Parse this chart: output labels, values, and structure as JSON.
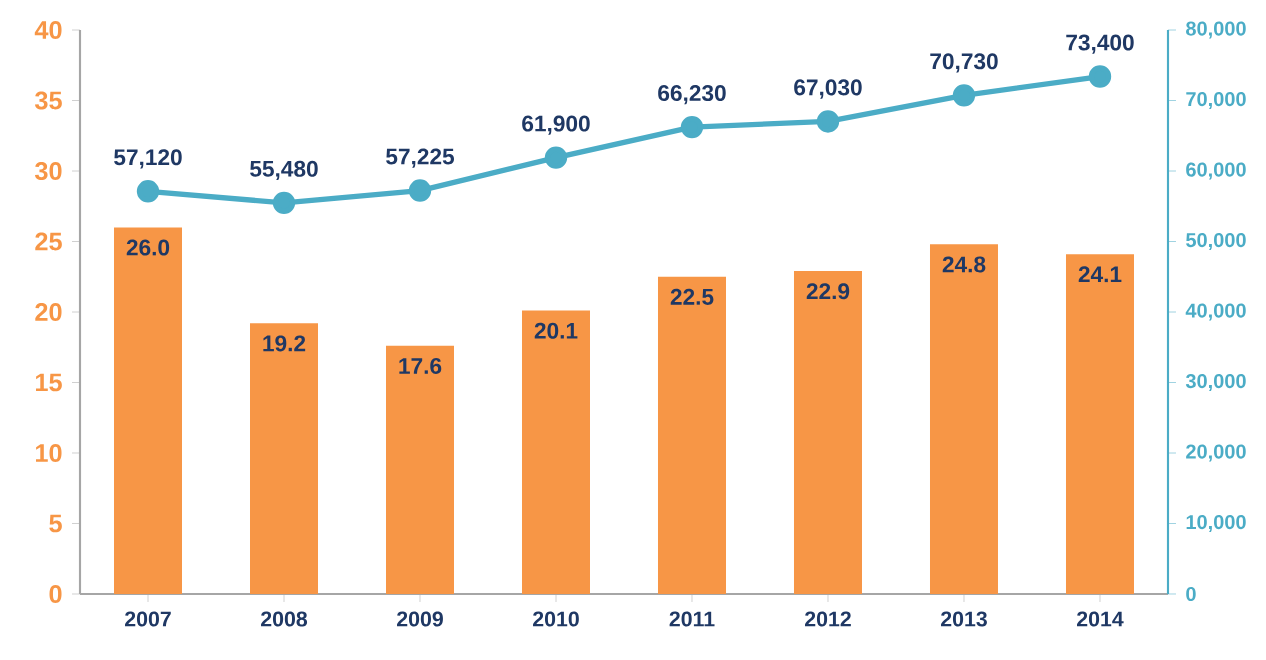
{
  "chart_data": {
    "type": "bar",
    "categories": [
      "2007",
      "2008",
      "2009",
      "2010",
      "2011",
      "2012",
      "2013",
      "2014"
    ],
    "series": [
      {
        "color": "#f79646",
        "values": [
          26.0,
          19.2,
          17.6,
          20.1,
          22.5,
          22.9,
          24.8,
          24.1
        ],
        "value_labels": [
          "26.0",
          "19.2",
          "17.6",
          "20.1",
          "22.5",
          "22.9",
          "24.8",
          "24.1"
        ]
      },
      {
        "type": "line",
        "axis": "y2",
        "color": "#4bacc6",
        "values": [
          57120,
          55480,
          57225,
          61900,
          66230,
          67030,
          70730,
          73400
        ],
        "value_labels": [
          "57,120",
          "55,480",
          "57,225",
          "61,900",
          "66,230",
          "67,030",
          "70,730",
          "73,400"
        ]
      }
    ],
    "ylim": [
      0,
      40
    ],
    "yticks": [
      0,
      5,
      10,
      15,
      20,
      25,
      30,
      35,
      40
    ],
    "y2lim": [
      0,
      80000
    ],
    "y2ticks": [
      0,
      {
        "value": 10000,
        "label": "10,000"
      },
      {
        "value": 20000,
        "label": "20,000"
      },
      {
        "value": 30000,
        "label": "30,000"
      },
      {
        "value": 40000,
        "label": "40,000"
      },
      {
        "value": 50000,
        "label": "50,000"
      },
      {
        "value": 60000,
        "label": "60,000"
      },
      {
        "value": 70000,
        "label": "70,000"
      },
      {
        "value": 80000,
        "label": "80,000"
      }
    ],
    "marker": "circle",
    "line_style": "solid",
    "grid": false
  }
}
